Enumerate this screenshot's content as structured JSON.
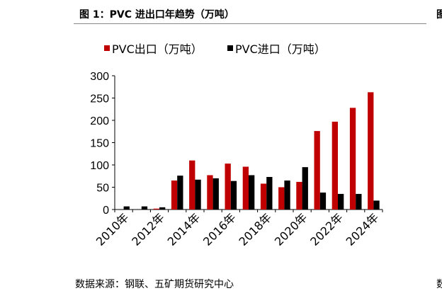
{
  "figure": {
    "title": "图 1：PVC 进出口年趋势（万吨）",
    "source": "数据来源：钢联、五矿期货研究中心",
    "right_stub_title": "图",
    "right_stub_source": "数"
  },
  "chart_data": {
    "type": "bar",
    "title": "",
    "xlabel": "",
    "ylabel": "",
    "categories": [
      "2010年",
      "2011年",
      "2012年",
      "2013年",
      "2014年",
      "2015年",
      "2016年",
      "2017年",
      "2018年",
      "2019年",
      "2020年",
      "2021年",
      "2022年",
      "2023年",
      "2024年"
    ],
    "x_tick_labels": [
      "2010年",
      "2012年",
      "2014年",
      "2016年",
      "2018年",
      "2020年",
      "2022年",
      "2024年"
    ],
    "series": [
      {
        "name": "PVC出口（万吨）",
        "color": "#c00000",
        "values": [
          0,
          0,
          2,
          65,
          110,
          77,
          103,
          96,
          58,
          50,
          62,
          176,
          197,
          228,
          263
        ]
      },
      {
        "name": "PVC进口（万吨）",
        "color": "#000000",
        "values": [
          7,
          7,
          5,
          76,
          67,
          70,
          64,
          77,
          73,
          65,
          95,
          38,
          35,
          35,
          20
        ]
      }
    ],
    "ylim": [
      0,
      300
    ],
    "yticks": [
      0,
      50,
      100,
      150,
      200,
      250,
      300
    ],
    "grid": false,
    "legend": "top"
  }
}
